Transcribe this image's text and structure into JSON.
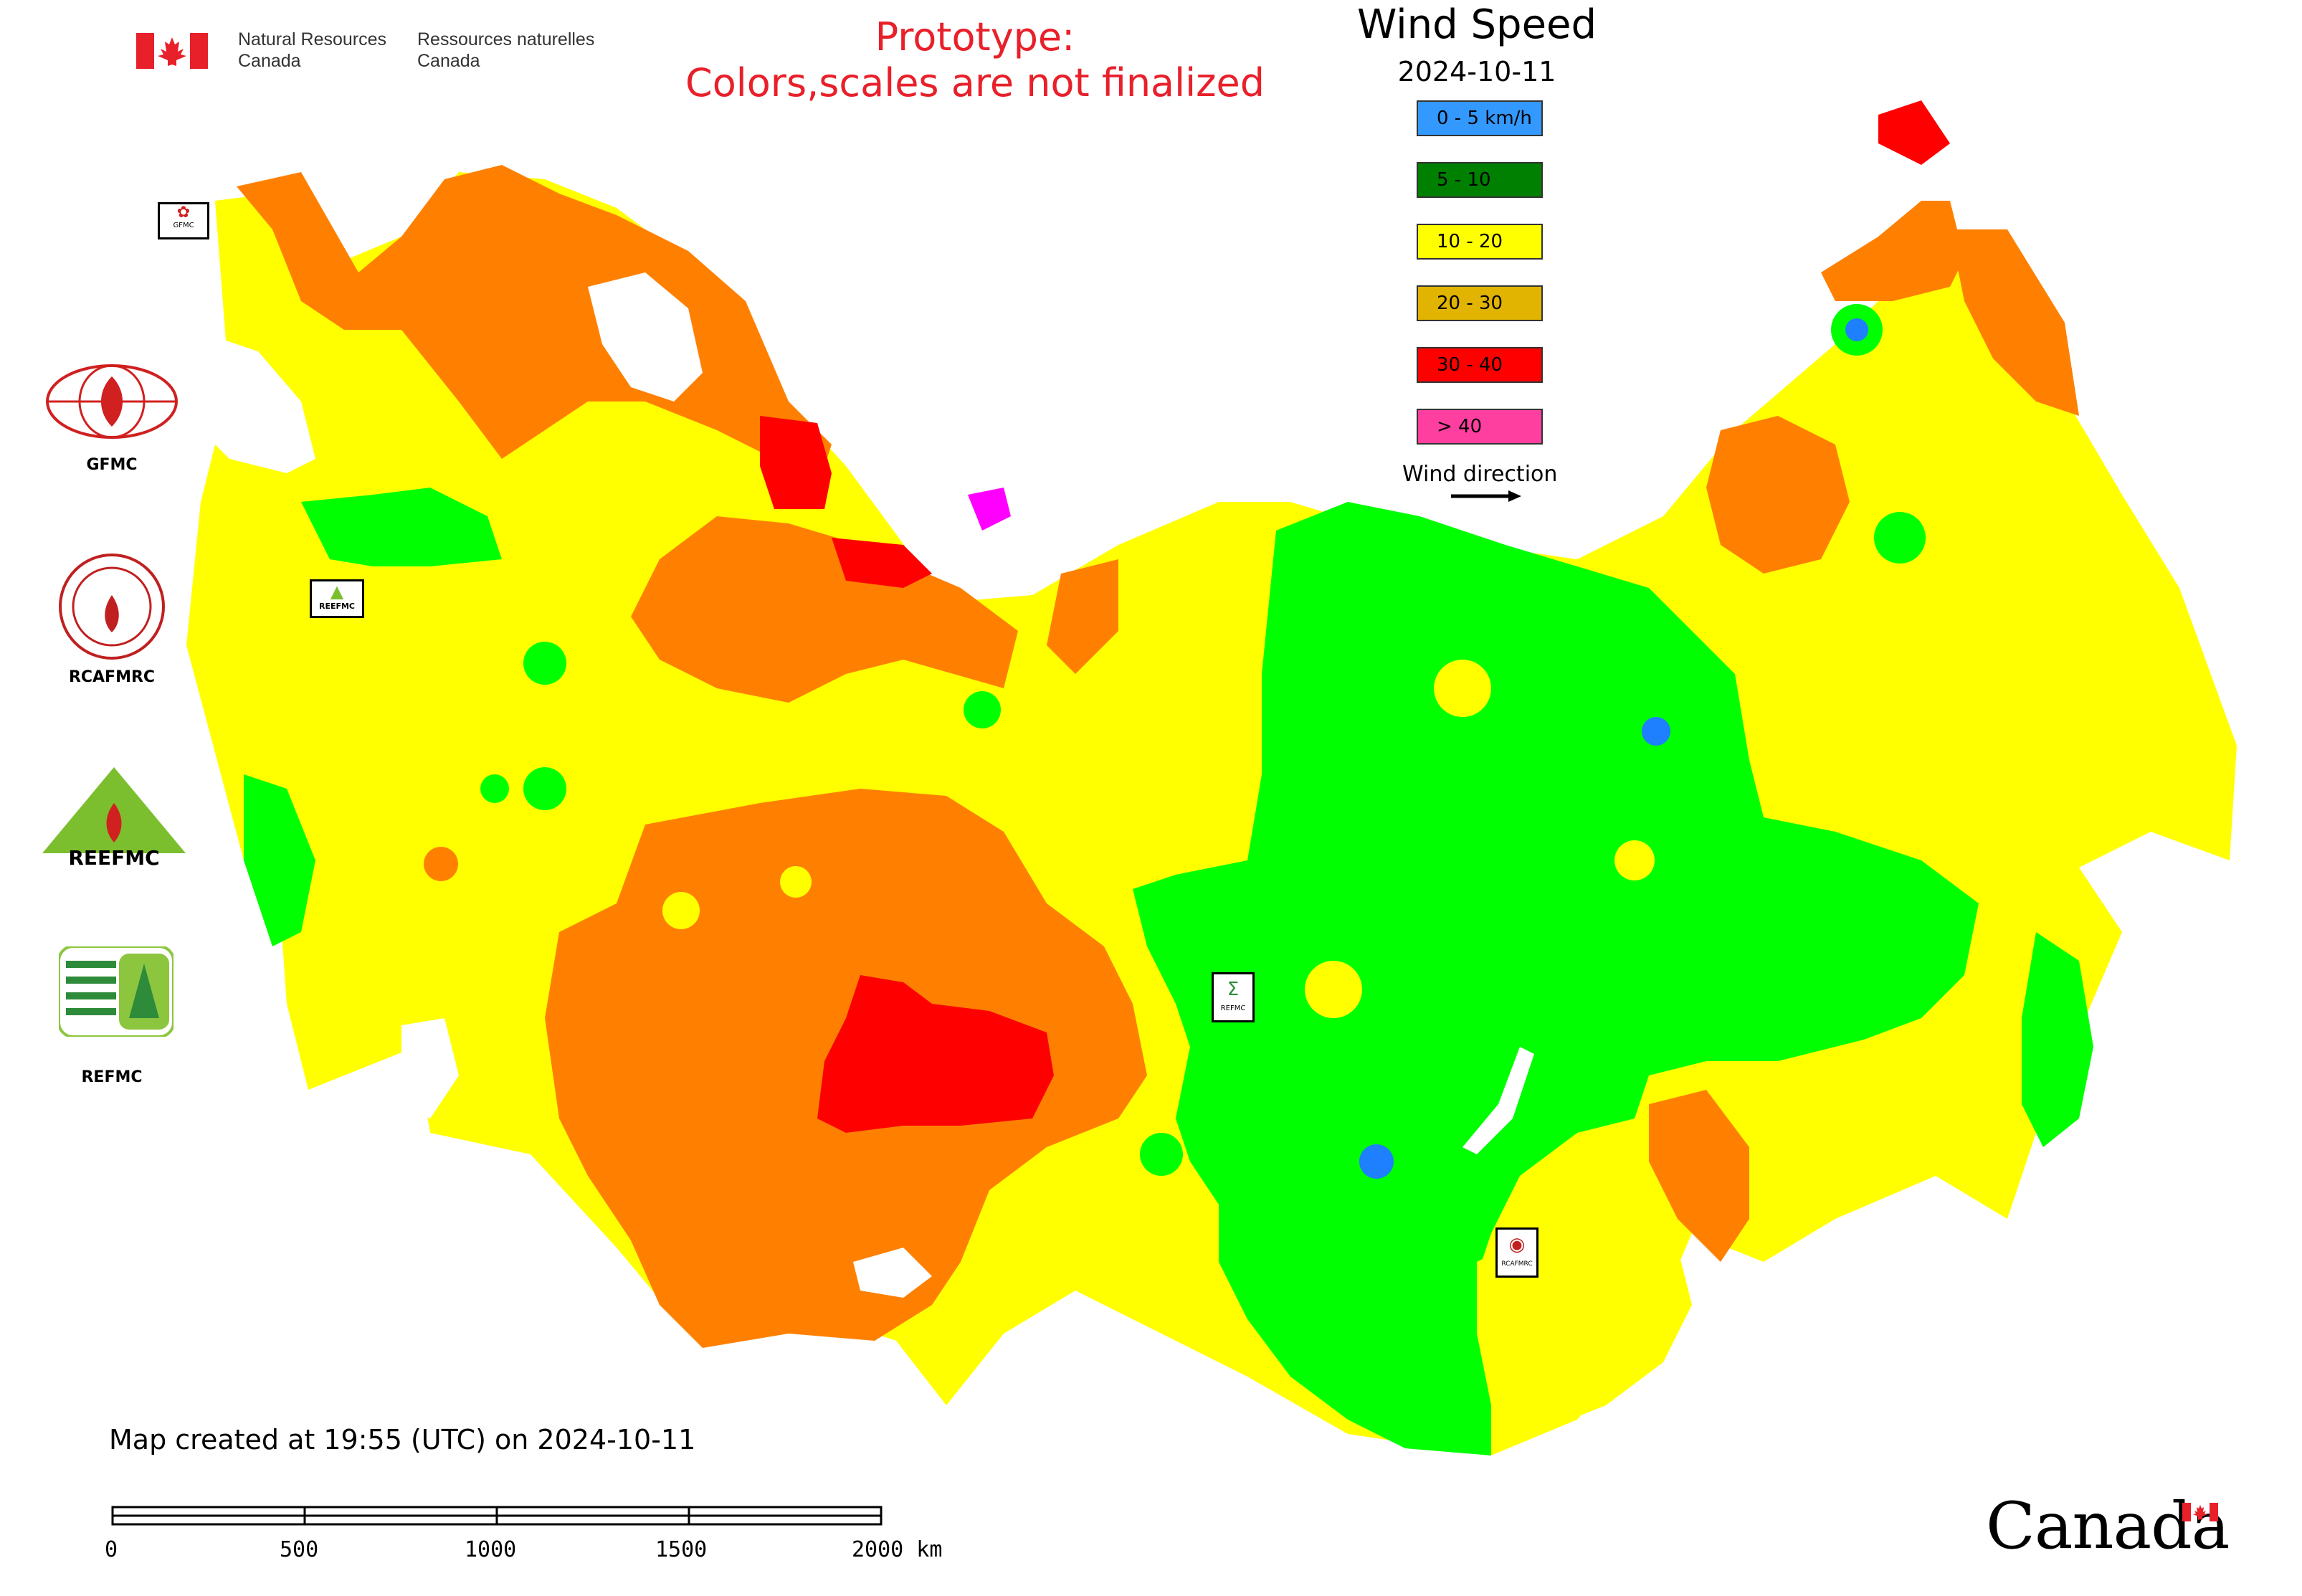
{
  "header": {
    "gov_en_line1": "Natural Resources",
    "gov_en_line2": "Canada",
    "gov_fr_line1": "Ressources naturelles",
    "gov_fr_line2": "Canada",
    "prototype_line1": "Prototype:",
    "prototype_line2": "Colors,scales are not finalized"
  },
  "legend": {
    "title": "Wind Speed",
    "date": "2024-10-11",
    "classes": [
      {
        "label": "0 - 5 km/h",
        "color": "#3399ff"
      },
      {
        "label": "5 - 10",
        "color": "#008000"
      },
      {
        "label": "10 - 20",
        "color": "#ffff00"
      },
      {
        "label": "20 - 30",
        "color": "#e0b400"
      },
      {
        "label": "30 - 40",
        "color": "#ff0000"
      },
      {
        "label": "> 40",
        "color": "#ff3fa0"
      }
    ],
    "wind_direction_label": "Wind direction"
  },
  "map_colors": {
    "calm": "#1e7fff",
    "light": "#00ff00",
    "moderate": "#ffff00",
    "fresh": "#ff8000",
    "strong": "#ff0000",
    "extreme": "#ff00ff",
    "water": "#ffffff",
    "border": "#c040c0"
  },
  "organizations": [
    {
      "name": "GFMC"
    },
    {
      "name": "RCAFMRC"
    },
    {
      "name": "REEFMC"
    },
    {
      "name": "REFMC"
    }
  ],
  "map_badges": {
    "gfmc": "GFMC",
    "reefmc": "REEFMC",
    "refmc": "REFMC",
    "rcafmrc": "RCAFMRC"
  },
  "footer": {
    "created_text": "Map created at 19:55 (UTC) on 2024-10-11",
    "scale_labels": [
      "0",
      "500",
      "1000",
      "1500",
      "2000 km"
    ],
    "wordmark": "Canada"
  }
}
